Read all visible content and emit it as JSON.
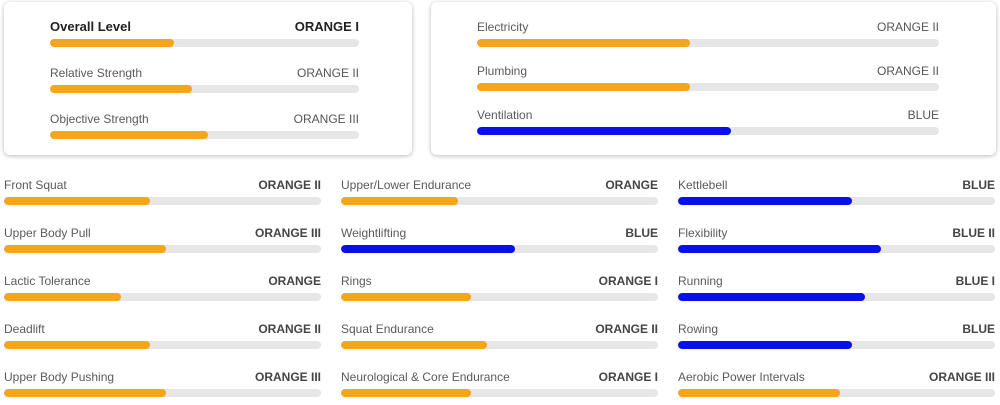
{
  "colors": {
    "orange": "#f5a51a",
    "blue": "#0a11e8",
    "track": "#e6e6e6"
  },
  "summary": [
    {
      "label": "Overall Level",
      "level": "ORANGE I",
      "color": "orange",
      "progress": 0.4
    },
    {
      "label": "Relative Strength",
      "level": "ORANGE II",
      "color": "orange",
      "progress": 0.46
    },
    {
      "label": "Objective Strength",
      "level": "ORANGE III",
      "color": "orange",
      "progress": 0.51
    }
  ],
  "systems": [
    {
      "label": "Electricity",
      "level": "ORANGE II",
      "color": "orange",
      "progress": 0.46
    },
    {
      "label": "Plumbing",
      "level": "ORANGE II",
      "color": "orange",
      "progress": 0.46
    },
    {
      "label": "Ventilation",
      "level": "BLUE",
      "color": "blue",
      "progress": 0.55
    }
  ],
  "skills": [
    [
      {
        "label": "Front Squat",
        "level": "ORANGE II",
        "color": "orange",
        "progress": 0.46
      },
      {
        "label": "Upper Body Pull",
        "level": "ORANGE III",
        "color": "orange",
        "progress": 0.51
      },
      {
        "label": "Lactic Tolerance",
        "level": "ORANGE",
        "color": "orange",
        "progress": 0.37
      },
      {
        "label": "Deadlift",
        "level": "ORANGE II",
        "color": "orange",
        "progress": 0.46
      },
      {
        "label": "Upper Body Pushing",
        "level": "ORANGE III",
        "color": "orange",
        "progress": 0.51
      }
    ],
    [
      {
        "label": "Upper/Lower Endurance",
        "level": "ORANGE",
        "color": "orange",
        "progress": 0.37
      },
      {
        "label": "Weightlifting",
        "level": "BLUE",
        "color": "blue",
        "progress": 0.55
      },
      {
        "label": "Rings",
        "level": "ORANGE I",
        "color": "orange",
        "progress": 0.41
      },
      {
        "label": "Squat Endurance",
        "level": "ORANGE II",
        "color": "orange",
        "progress": 0.46
      },
      {
        "label": "Neurological & Core Endurance",
        "level": "ORANGE I",
        "color": "orange",
        "progress": 0.41
      }
    ],
    [
      {
        "label": "Kettlebell",
        "level": "BLUE",
        "color": "blue",
        "progress": 0.55
      },
      {
        "label": "Flexibility",
        "level": "BLUE II",
        "color": "blue",
        "progress": 0.64
      },
      {
        "label": "Running",
        "level": "BLUE I",
        "color": "blue",
        "progress": 0.59
      },
      {
        "label": "Rowing",
        "level": "BLUE",
        "color": "blue",
        "progress": 0.55
      },
      {
        "label": "Aerobic Power Intervals",
        "level": "ORANGE III",
        "color": "orange",
        "progress": 0.51
      }
    ]
  ]
}
